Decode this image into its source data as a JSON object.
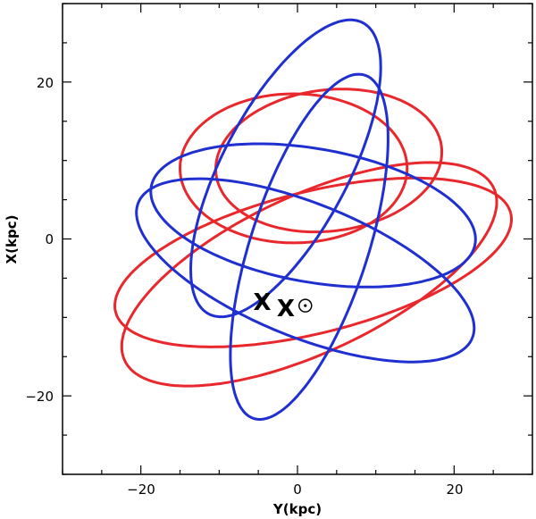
{
  "chart_data": {
    "type": "line",
    "title": "",
    "xlabel": "Y(kpc)",
    "ylabel": "X(kpc)",
    "xlim": [
      -30,
      30
    ],
    "ylim": [
      -30,
      30
    ],
    "x_ticks": [
      -20,
      0,
      20
    ],
    "y_ticks": [
      -20,
      0,
      20
    ],
    "x_tick_labels": [
      "−20",
      "0",
      "20"
    ],
    "y_tick_labels": [
      "−20",
      "0",
      "20"
    ],
    "grid": false,
    "legend": "none",
    "colors": {
      "red": "#e8282c",
      "blue": "#1f2fd0",
      "marker": "#000000"
    },
    "series": [
      {
        "color": "red",
        "shape": "ellipse",
        "center": [
          -0.5,
          9.0
        ],
        "semi_axes": [
          9.5,
          14.5
        ],
        "angle_deg": 90
      },
      {
        "color": "red",
        "shape": "ellipse",
        "center": [
          4.0,
          10.0
        ],
        "semi_axes": [
          9.0,
          14.5
        ],
        "angle_deg": 97
      },
      {
        "color": "red",
        "shape": "ellipse",
        "center": [
          2.0,
          -3.0
        ],
        "semi_axes": [
          26.0,
          9.0
        ],
        "angle_deg": 14
      },
      {
        "color": "red",
        "shape": "ellipse",
        "center": [
          1.5,
          -4.5
        ],
        "semi_axes": [
          26.0,
          10.0
        ],
        "angle_deg": 25
      },
      {
        "color": "blue",
        "shape": "ellipse",
        "center": [
          -1.5,
          9.0
        ],
        "semi_axes": [
          21.0,
          8.0
        ],
        "angle_deg": 62
      },
      {
        "color": "blue",
        "shape": "ellipse",
        "center": [
          2.0,
          3.0
        ],
        "semi_axes": [
          21.0,
          8.5
        ],
        "angle_deg": -10
      },
      {
        "color": "blue",
        "shape": "ellipse",
        "center": [
          1.0,
          -4.0
        ],
        "semi_axes": [
          23.0,
          8.5
        ],
        "angle_deg": -22
      },
      {
        "color": "blue",
        "shape": "ellipse",
        "center": [
          1.5,
          -1.0
        ],
        "semi_axes": [
          23.0,
          7.5
        ],
        "angle_deg": 72
      }
    ],
    "markers": [
      {
        "type": "X",
        "label": "X",
        "x": -4.5,
        "y": -8.0
      },
      {
        "type": "X",
        "label": "X",
        "x": -1.5,
        "y": -8.8
      },
      {
        "type": "sun",
        "label": "⊙",
        "x": 1.0,
        "y": -8.5
      }
    ]
  }
}
